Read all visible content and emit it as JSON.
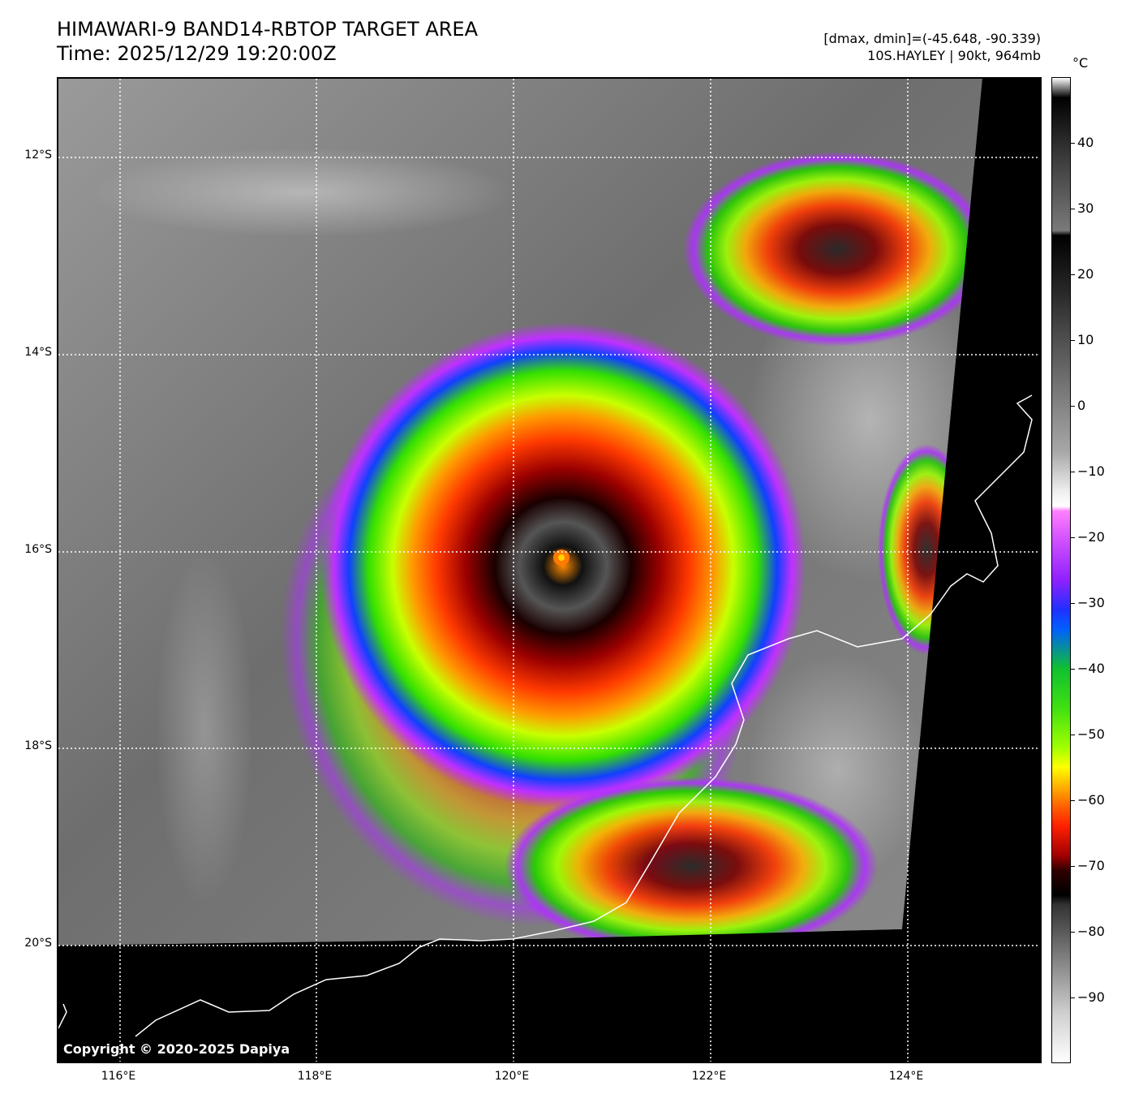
{
  "header": {
    "title_line1": "HIMAWARI-9 BAND14-RBTOP TARGET AREA",
    "title_line2": "Time: 2025/12/29 19:20:00Z",
    "stats_line": "[dmax, dmin]=(-45.648, -90.339)",
    "storm_line": "10S.HAYLEY | 90kt, 964mb"
  },
  "map": {
    "copyright": "Copyright © 2020-2025 Dapiya",
    "lat_labels": [
      "12°S",
      "14°S",
      "16°S",
      "18°S",
      "20°S"
    ],
    "lon_labels": [
      "116°E",
      "118°E",
      "120°E",
      "122°E",
      "124°E"
    ],
    "lon_range": [
      115.4,
      125.4
    ],
    "lat_range": [
      -21.2,
      -11.0
    ],
    "storm_center": {
      "lon": 120.5,
      "lat": -16.1
    },
    "colors": {
      "land_line": "#ffffff",
      "grid_line": "#ffffff",
      "no_data": "#000000"
    }
  },
  "colorbar": {
    "unit": "°C",
    "ticks": [
      "40",
      "30",
      "20",
      "10",
      "0",
      "−10",
      "−20",
      "−30",
      "−40",
      "−50",
      "−60",
      "−70",
      "−80",
      "−90"
    ],
    "tick_values": [
      40,
      30,
      20,
      10,
      0,
      -10,
      -20,
      -30,
      -40,
      -50,
      -60,
      -70,
      -80,
      -90
    ],
    "range": [
      -100,
      50
    ]
  }
}
